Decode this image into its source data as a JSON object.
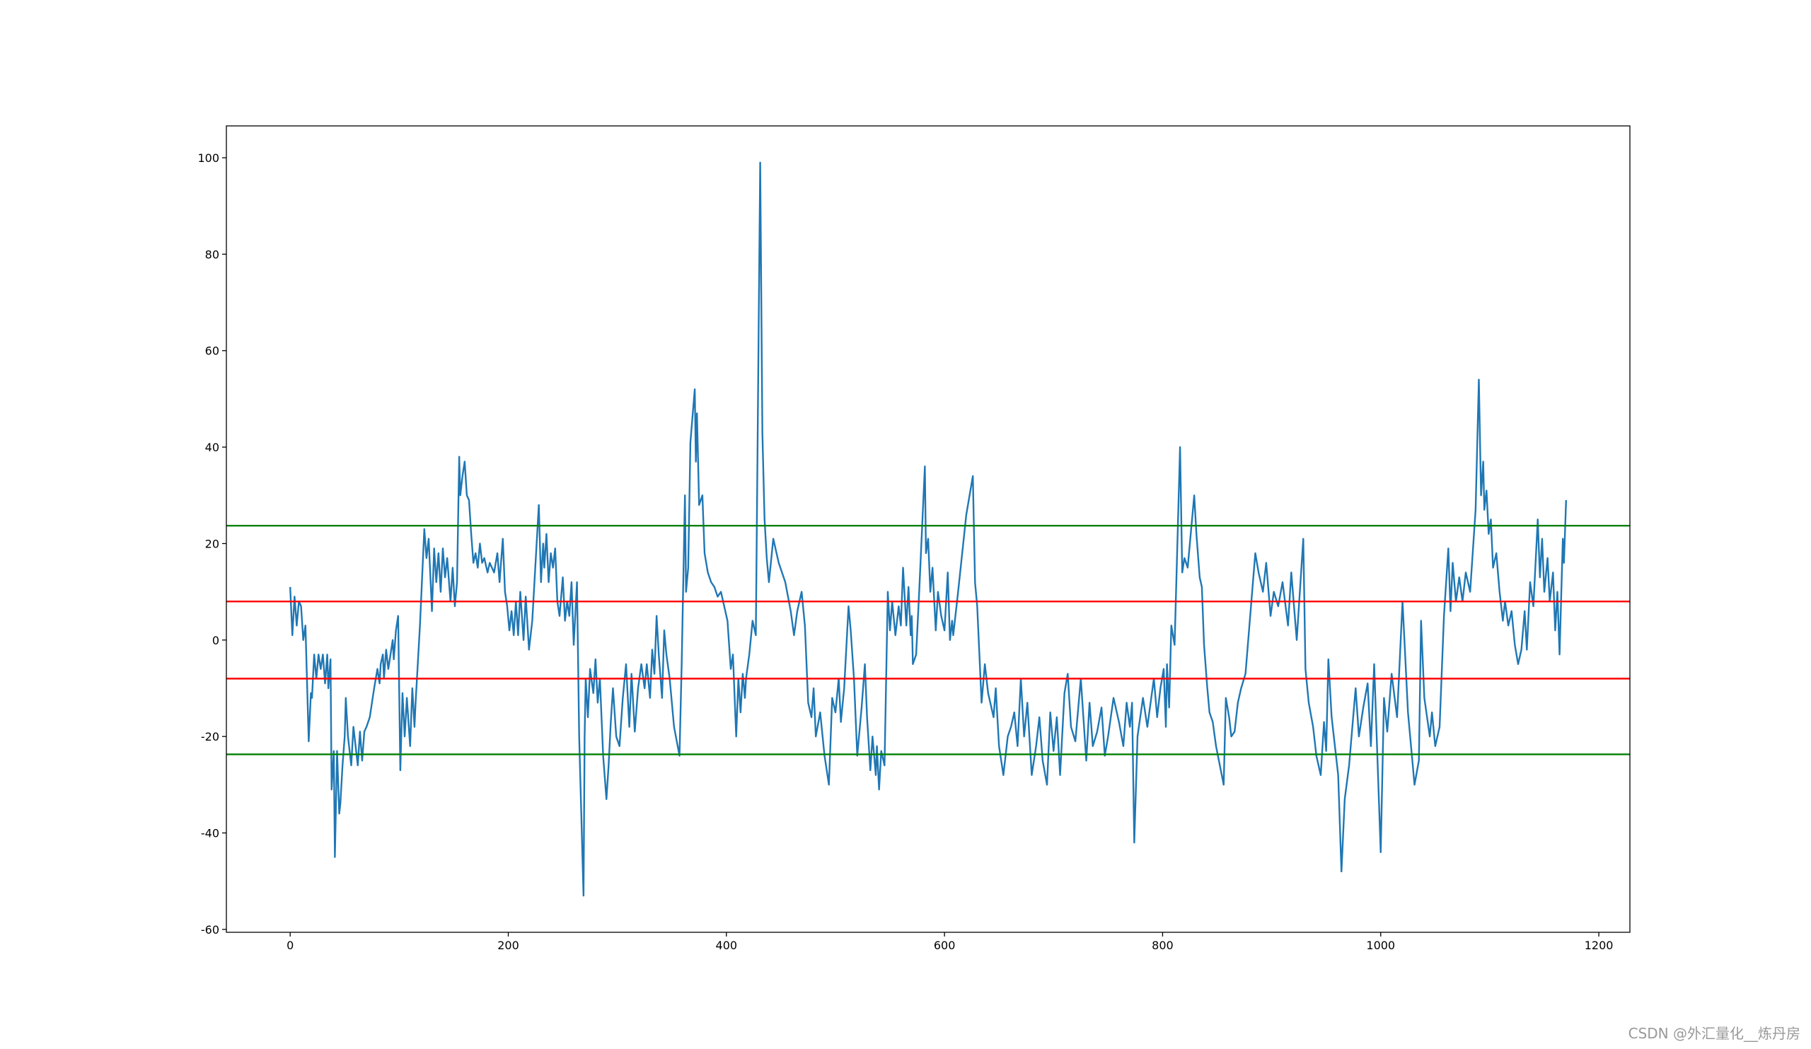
{
  "chart_data": {
    "type": "line",
    "watermark": "CSDN @外汇量化__炼丹房",
    "xlim": [
      -58.5,
      1228.5
    ],
    "xticks": [
      0,
      200,
      400,
      600,
      800,
      1000,
      1200
    ],
    "ylim": [
      -60.6,
      106.6
    ],
    "yticks": [
      -60,
      -40,
      -20,
      0,
      20,
      40,
      60,
      80,
      100
    ],
    "color": "#1f77b4",
    "hlines": [
      {
        "y": 23.7,
        "color": "green"
      },
      {
        "y": 8,
        "color": "red"
      },
      {
        "y": -8,
        "color": "red"
      },
      {
        "y": -23.7,
        "color": "green"
      }
    ],
    "x": [
      0,
      2,
      4,
      6,
      8,
      10,
      12,
      14,
      17,
      19,
      20,
      22,
      24,
      26,
      28,
      30,
      32,
      34,
      35,
      37,
      38,
      40,
      41,
      43,
      45,
      46,
      48,
      50,
      51,
      53,
      56,
      58,
      60,
      62,
      64,
      66,
      68,
      70,
      73,
      75,
      77,
      80,
      82,
      83,
      85,
      86,
      88,
      90,
      92,
      94,
      95,
      97,
      99,
      101,
      103,
      105,
      107,
      110,
      112,
      114,
      115,
      117,
      119,
      121,
      123,
      125,
      127,
      130,
      132,
      134,
      136,
      138,
      140,
      142,
      144,
      147,
      149,
      151,
      153,
      155,
      156,
      158,
      160,
      162,
      164,
      166,
      168,
      170,
      172,
      174,
      176,
      178,
      181,
      183,
      185,
      187,
      190,
      192,
      195,
      197,
      199,
      201,
      203,
      205,
      207,
      209,
      211,
      214,
      216,
      219,
      222,
      228,
      230,
      232,
      233,
      235,
      237,
      239,
      241,
      243,
      245,
      247,
      250,
      252,
      254,
      256,
      258,
      260,
      263,
      265,
      269,
      270,
      271,
      273,
      275,
      278,
      280,
      282,
      284,
      287,
      290,
      292,
      294,
      296,
      299,
      302,
      305,
      308,
      311,
      313,
      316,
      319,
      322,
      325,
      327,
      330,
      332,
      334,
      336,
      338,
      341,
      343,
      345,
      348,
      352,
      357,
      359,
      362,
      363,
      365,
      367,
      371,
      372,
      373,
      375,
      378,
      380,
      383,
      386,
      389,
      392,
      395,
      398,
      401,
      404,
      406,
      409,
      411,
      413,
      415,
      417,
      418,
      421,
      424,
      427,
      431,
      433,
      435,
      437,
      439,
      443,
      448,
      454,
      459,
      462,
      465,
      469,
      472,
      475,
      478,
      480,
      482,
      486,
      490,
      494,
      497,
      500,
      503,
      505,
      508,
      512,
      514,
      517,
      520,
      524,
      527,
      529,
      532,
      534,
      537,
      538,
      540,
      542,
      545,
      548,
      550,
      552,
      555,
      558,
      560,
      562,
      565,
      567,
      569,
      570,
      571,
      574,
      577,
      582,
      583,
      585,
      587,
      589,
      592,
      594,
      597,
      600,
      603,
      605,
      607,
      608,
      612,
      620,
      626,
      628,
      630,
      634,
      637,
      640,
      645,
      647,
      650,
      654,
      658,
      661,
      664,
      667,
      670,
      673,
      676,
      680,
      684,
      687,
      690,
      694,
      697,
      700,
      703,
      706,
      710,
      713,
      716,
      720,
      725,
      730,
      733,
      736,
      740,
      744,
      747,
      750,
      755,
      760,
      764,
      767,
      770,
      772,
      774,
      777,
      782,
      786,
      792,
      795,
      798,
      801,
      803,
      804,
      806,
      808,
      811,
      816,
      818,
      820,
      823,
      829,
      831,
      834,
      836,
      838,
      841,
      843,
      846,
      849,
      856,
      858,
      861,
      863,
      866,
      869,
      872,
      876,
      885,
      888,
      892,
      895,
      899,
      902,
      906,
      910,
      915,
      918,
      923,
      929,
      931,
      934,
      938,
      941,
      945,
      948,
      950,
      952,
      955,
      958,
      961,
      964,
      967,
      971,
      977,
      980,
      984,
      988,
      991,
      994,
      1000,
      1003,
      1006,
      1010,
      1015,
      1020,
      1025,
      1031,
      1035,
      1037,
      1040,
      1045,
      1047,
      1050,
      1054,
      1058,
      1062,
      1064,
      1066,
      1069,
      1072,
      1075,
      1078,
      1082,
      1087,
      1090,
      1092,
      1094,
      1095,
      1097,
      1099,
      1101,
      1103,
      1106,
      1109,
      1112,
      1114,
      1117,
      1120,
      1123,
      1126,
      1129,
      1132,
      1134,
      1137,
      1140,
      1144,
      1146,
      1148,
      1150,
      1153,
      1155,
      1158,
      1160,
      1162,
      1164,
      1167,
      1168,
      1170
    ],
    "values": [
      11,
      1,
      9,
      3,
      8,
      7,
      0,
      3,
      -21,
      -11,
      -12,
      -3,
      -8,
      -3,
      -6,
      -3,
      -9,
      -3,
      -10,
      -4,
      -31,
      -23,
      -45,
      -23,
      -36,
      -34,
      -26,
      -20,
      -12,
      -20,
      -26,
      -18,
      -22,
      -26,
      -19,
      -25,
      -19,
      -18,
      -16,
      -13,
      -10,
      -6,
      -9,
      -5,
      -3,
      -8,
      -2,
      -6,
      -3,
      0,
      -4,
      2,
      5,
      -27,
      -11,
      -20,
      -12,
      -22,
      -10,
      -18,
      -13,
      -5,
      3,
      13,
      23,
      17,
      21,
      6,
      19,
      12,
      18,
      10,
      19,
      13,
      17,
      8,
      15,
      7,
      12,
      38,
      30,
      34,
      37,
      30,
      29,
      22,
      16,
      18,
      15,
      20,
      16,
      17,
      14,
      16,
      15,
      14,
      18,
      12,
      21,
      10,
      7,
      2,
      6,
      1,
      8,
      1,
      10,
      0,
      9,
      -2,
      4,
      28,
      12,
      20,
      15,
      22,
      12,
      18,
      15,
      19,
      8,
      5,
      13,
      4,
      8,
      5,
      12,
      -1,
      12,
      -20,
      -53,
      -20,
      -8,
      -16,
      -6,
      -11,
      -4,
      -13,
      -8,
      -24,
      -33,
      -26,
      -17,
      -10,
      -20,
      -22,
      -12,
      -5,
      -18,
      -7,
      -19,
      -10,
      -5,
      -10,
      -5,
      -12,
      -2,
      -7,
      5,
      -3,
      -12,
      2,
      -3,
      -8,
      -18,
      -24,
      -5,
      30,
      10,
      15,
      41,
      52,
      37,
      47,
      28,
      30,
      18,
      14,
      12,
      11,
      9,
      10,
      7,
      4,
      -6,
      -3,
      -20,
      -8,
      -15,
      -7,
      -12,
      -8,
      -3,
      4,
      1,
      99,
      43,
      25,
      17,
      12,
      21,
      16,
      12,
      6,
      1,
      6,
      10,
      3,
      -13,
      -16,
      -10,
      -20,
      -15,
      -24,
      -30,
      -12,
      -15,
      -8,
      -17,
      -10,
      7,
      2,
      -8,
      -24,
      -14,
      -5,
      -16,
      -27,
      -20,
      -28,
      -22,
      -31,
      -23,
      -26,
      10,
      2,
      8,
      1,
      7,
      3,
      15,
      3,
      11,
      1,
      5,
      -5,
      -3,
      11,
      36,
      18,
      21,
      10,
      15,
      2,
      10,
      5,
      2,
      14,
      0,
      4,
      1,
      9,
      26,
      34,
      12,
      7,
      -13,
      -5,
      -11,
      -16,
      -10,
      -22,
      -28,
      -20,
      -18,
      -15,
      -22,
      -8,
      -20,
      -13,
      -28,
      -22,
      -16,
      -25,
      -30,
      -15,
      -23,
      -16,
      -28,
      -11,
      -7,
      -18,
      -21,
      -8,
      -25,
      -13,
      -22,
      -19,
      -14,
      -24,
      -20,
      -12,
      -17,
      -22,
      -13,
      -18,
      -13,
      -42,
      -20,
      -12,
      -18,
      -8,
      -16,
      -10,
      -6,
      -18,
      -5,
      -14,
      3,
      -1,
      40,
      14,
      17,
      15,
      30,
      22,
      13,
      11,
      -1,
      -10,
      -15,
      -17,
      -22,
      -30,
      -12,
      -16,
      -20,
      -19,
      -13,
      -10,
      -7,
      18,
      14,
      10,
      16,
      5,
      10,
      7,
      12,
      3,
      14,
      0,
      21,
      -6,
      -13,
      -18,
      -24,
      -28,
      -17,
      -23,
      -4,
      -16,
      -22,
      -28,
      -48,
      -33,
      -26,
      -10,
      -20,
      -14,
      -9,
      -22,
      -5,
      -44,
      -12,
      -19,
      -7,
      -16,
      8,
      -15,
      -30,
      -25,
      4,
      -12,
      -20,
      -15,
      -22,
      -18,
      5,
      19,
      6,
      16,
      8,
      13,
      8,
      14,
      10,
      27,
      54,
      30,
      37,
      27,
      31,
      22,
      25,
      15,
      18,
      10,
      4,
      8,
      3,
      6,
      -1,
      -5,
      -2,
      6,
      -2,
      12,
      7,
      25,
      13,
      21,
      10,
      17,
      8,
      14,
      2,
      10,
      -3,
      21,
      16,
      29
    ]
  }
}
